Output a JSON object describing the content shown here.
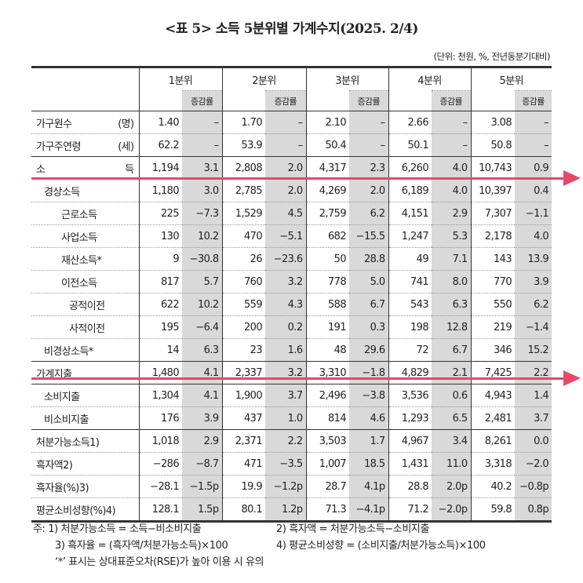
{
  "title": "<표 5> 소득 5분위별 가계수지(2025. 2/4)",
  "unit": "(단위: 천원, %, 전년동분기대비)",
  "columns": [
    "1분위",
    "2분위",
    "3분위",
    "4분위",
    "5분위"
  ],
  "rate_label": "증감률",
  "rows": [
    {
      "label": "가구원수 (명)",
      "v": [
        "1.40",
        "–",
        "1.70",
        "–",
        "2.10",
        "–",
        "2.66",
        "–",
        "3.08",
        "–"
      ]
    },
    {
      "label": "가구주연령 (세)",
      "v": [
        "62.2",
        "–",
        "53.9",
        "–",
        "50.4",
        "–",
        "50.1",
        "–",
        "50.8",
        "–"
      ]
    },
    {
      "label": "소 득",
      "v": [
        "1,194",
        "3.1",
        "2,808",
        "2.0",
        "4,317",
        "2.3",
        "6,260",
        "4.0",
        "10,743",
        "0.9"
      ]
    },
    {
      "label": "경상소득",
      "v": [
        "1,180",
        "3.0",
        "2,785",
        "2.0",
        "4,269",
        "2.0",
        "6,189",
        "4.0",
        "10,397",
        "0.4"
      ]
    },
    {
      "label": "근로소득",
      "v": [
        "225",
        "−7.3",
        "1,529",
        "4.5",
        "2,759",
        "6.2",
        "4,151",
        "2.9",
        "7,307",
        "−1.1"
      ]
    },
    {
      "label": "사업소득",
      "v": [
        "130",
        "10.2",
        "470",
        "−5.1",
        "682",
        "−15.5",
        "1,247",
        "5.3",
        "2,178",
        "4.0"
      ]
    },
    {
      "label": "재산소득*",
      "v": [
        "9",
        "−30.8",
        "26",
        "−23.6",
        "50",
        "28.8",
        "49",
        "7.1",
        "143",
        "13.9"
      ]
    },
    {
      "label": "이전소득",
      "v": [
        "817",
        "5.7",
        "760",
        "3.2",
        "778",
        "5.0",
        "741",
        "8.0",
        "770",
        "3.9"
      ]
    },
    {
      "label": "공적이전",
      "v": [
        "622",
        "10.2",
        "559",
        "4.3",
        "588",
        "6.7",
        "543",
        "6.3",
        "550",
        "6.2"
      ]
    },
    {
      "label": "사적이전",
      "v": [
        "195",
        "−6.4",
        "200",
        "0.2",
        "191",
        "0.3",
        "198",
        "12.8",
        "219",
        "−1.4"
      ]
    },
    {
      "label": "비경상소득*",
      "v": [
        "14",
        "6.3",
        "23",
        "1.6",
        "48",
        "29.6",
        "72",
        "6.7",
        "346",
        "15.2"
      ]
    },
    {
      "label": "가계지출",
      "v": [
        "1,480",
        "4.1",
        "2,337",
        "3.2",
        "3,310",
        "−1.8",
        "4,829",
        "2.1",
        "7,425",
        "2.2"
      ]
    },
    {
      "label": "소비지출",
      "v": [
        "1,304",
        "4.1",
        "1,900",
        "3.7",
        "2,496",
        "−3.8",
        "3,536",
        "0.6",
        "4,943",
        "1.4"
      ]
    },
    {
      "label": "비소비지출",
      "v": [
        "176",
        "3.9",
        "437",
        "1.0",
        "814",
        "4.6",
        "1,293",
        "6.5",
        "2,481",
        "3.7"
      ]
    },
    {
      "label": "처분가능소득1)",
      "v": [
        "1,018",
        "2.9",
        "2,371",
        "2.2",
        "3,503",
        "1.7",
        "4,967",
        "3.4",
        "8,261",
        "0.0"
      ]
    },
    {
      "label": "흑자액2)",
      "v": [
        "−286",
        "−8.7",
        "471",
        "−3.5",
        "1,007",
        "18.5",
        "1,431",
        "11.0",
        "3,318",
        "−2.0"
      ]
    },
    {
      "label": "흑자율(%)3)",
      "v": [
        "−28.1",
        "−1.5p",
        "19.9",
        "−1.2p",
        "28.7",
        "4.1p",
        "28.8",
        "2.0p",
        "40.2",
        "−0.8p"
      ]
    },
    {
      "label": "평균소비성향(%)4)",
      "v": [
        "128.1",
        "1.5p",
        "80.1",
        "1.2p",
        "71.3",
        "−4.1p",
        "71.2",
        "−2.0p",
        "59.8",
        "0.8p"
      ]
    }
  ],
  "notes": {
    "n1": "주: 1) 처분가능소득 = 소득−비소비지출",
    "n2": "2) 흑자액 = 처분가능소득−소비지출",
    "n3": "3) 흑자율 = (흑자액/처분가능소득)×100",
    "n4": "4) 평균소비성향 = (소비지출/처분가능소득)×100",
    "n5": "‘*’ 표시는 상대표준오차(RSE)가 높아 이용 시 유의"
  },
  "colors": {
    "arrow": "#e8476a",
    "shade": "#d9d9d9"
  }
}
